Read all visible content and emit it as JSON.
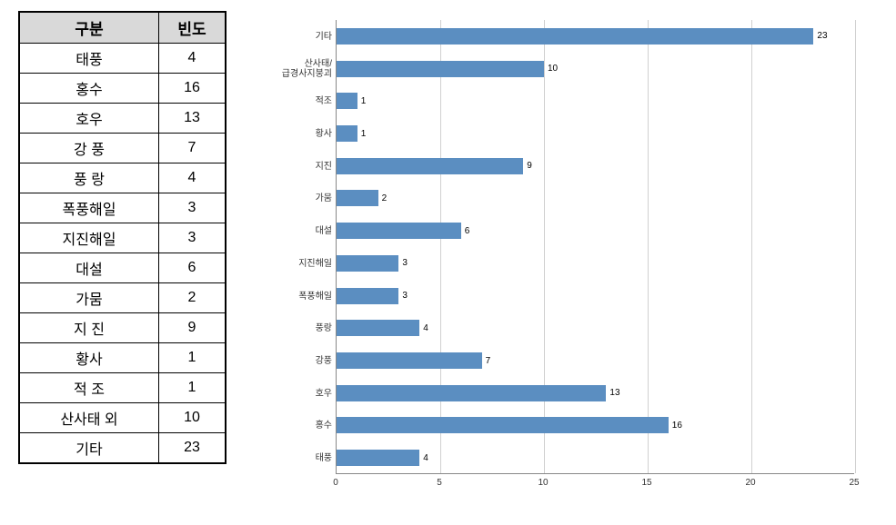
{
  "table": {
    "header": {
      "cat": "구분",
      "val": "빈도"
    },
    "rows": [
      {
        "cat": "태풍",
        "val": 4
      },
      {
        "cat": "홍수",
        "val": 16
      },
      {
        "cat": "호우",
        "val": 13
      },
      {
        "cat": "강 풍",
        "val": 7
      },
      {
        "cat": "풍 랑",
        "val": 4
      },
      {
        "cat": "폭풍해일",
        "val": 3
      },
      {
        "cat": "지진해일",
        "val": 3
      },
      {
        "cat": "대설",
        "val": 6
      },
      {
        "cat": "가뭄",
        "val": 2
      },
      {
        "cat": "지 진",
        "val": 9
      },
      {
        "cat": "황사",
        "val": 1
      },
      {
        "cat": "적 조",
        "val": 1
      },
      {
        "cat": "산사태 외",
        "val": 10
      },
      {
        "cat": "기타",
        "val": 23
      }
    ]
  },
  "chart": {
    "type": "bar-horizontal",
    "bar_color": "#5b8ec1",
    "grid_color": "#d0d0d0",
    "axis_color": "#888888",
    "text_color": "#333333",
    "background_color": "#ffffff",
    "label_fontsize": 10,
    "xlim": [
      0,
      25
    ],
    "xtick_step": 5,
    "xticks": [
      0,
      5,
      10,
      15,
      20,
      25
    ],
    "bars": [
      {
        "label": "기타",
        "value": 23
      },
      {
        "label": "산사태/\n급경사지붕괴",
        "value": 10
      },
      {
        "label": "적조",
        "value": 1
      },
      {
        "label": "황사",
        "value": 1
      },
      {
        "label": "지진",
        "value": 9
      },
      {
        "label": "가뭄",
        "value": 2
      },
      {
        "label": "대설",
        "value": 6
      },
      {
        "label": "지진해일",
        "value": 3
      },
      {
        "label": "폭풍해일",
        "value": 3
      },
      {
        "label": "풍랑",
        "value": 4
      },
      {
        "label": "강풍",
        "value": 7
      },
      {
        "label": "호우",
        "value": 13
      },
      {
        "label": "홍수",
        "value": 16
      },
      {
        "label": "태풍",
        "value": 4
      }
    ]
  }
}
